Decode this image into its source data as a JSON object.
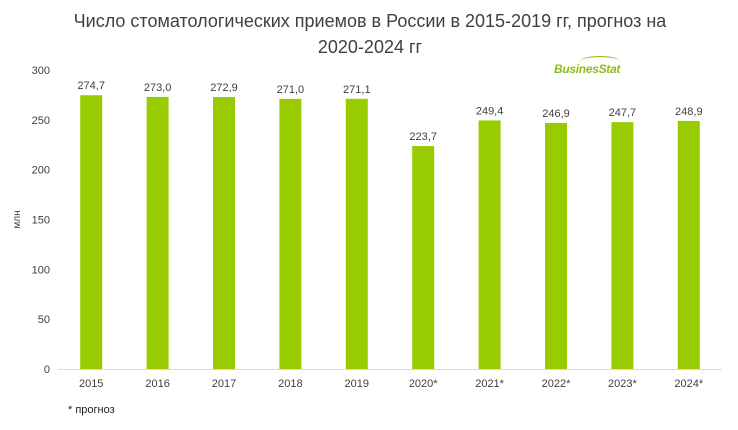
{
  "chart_data": {
    "type": "bar",
    "title": "Число стоматологических приемов в России в 2015-2019 гг, прогноз на 2020-2024 гг",
    "title_lines": [
      "Число стоматологических приемов в России в 2015-2019 гг, прогноз на",
      "2020-2024 гг"
    ],
    "ylabel": "млн",
    "xlabel": "",
    "categories": [
      "2015",
      "2016",
      "2017",
      "2018",
      "2019",
      "2020*",
      "2021*",
      "2022*",
      "2023*",
      "2024*"
    ],
    "values": [
      274.7,
      273.0,
      272.9,
      271.0,
      271.1,
      223.7,
      249.4,
      246.9,
      247.7,
      248.9
    ],
    "value_labels": [
      "274,7",
      "273,0",
      "272,9",
      "271,0",
      "271,1",
      "223,7",
      "249,4",
      "246,9",
      "247,7",
      "248,9"
    ],
    "ylim": [
      0,
      300
    ],
    "yticks": [
      0,
      50,
      100,
      150,
      200,
      250,
      300
    ],
    "bar_color": "#99cc00",
    "grid": false,
    "legend": "none"
  },
  "branding": {
    "logo_text": "BusinesStat"
  },
  "footnote": "* прогноз"
}
